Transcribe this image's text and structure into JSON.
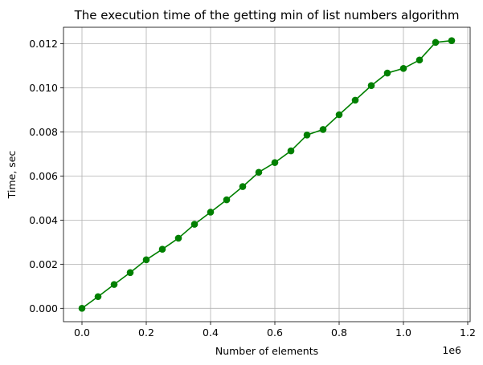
{
  "chart_data": {
    "type": "line",
    "title": "The execution time of the getting min of list numbers algorithm",
    "xlabel": "Number of elements",
    "ylabel": "Time, sec",
    "x_offset_label": "1e6",
    "xlim": [
      -0.0575,
      1.2075
    ],
    "ylim": [
      -0.000607,
      0.012746
    ],
    "x_ticks": [
      0.0,
      0.2,
      0.4,
      0.6,
      0.8,
      1.0,
      1.2
    ],
    "x_tick_labels": [
      "0.0",
      "0.2",
      "0.4",
      "0.6",
      "0.8",
      "1.0",
      "1.2"
    ],
    "y_ticks": [
      0.0,
      0.002,
      0.004,
      0.006,
      0.008,
      0.01,
      0.012
    ],
    "y_tick_labels": [
      "0.000",
      "0.002",
      "0.004",
      "0.006",
      "0.008",
      "0.010",
      "0.012"
    ],
    "grid": true,
    "color": "#008000",
    "series": [
      {
        "x": [
          0,
          0.05,
          0.1,
          0.15,
          0.2,
          0.25,
          0.3,
          0.35,
          0.4,
          0.45,
          0.5,
          0.55,
          0.6,
          0.65,
          0.7,
          0.75,
          0.8,
          0.85,
          0.9,
          0.95,
          1.0,
          1.05,
          1.1,
          1.15
        ],
        "values": [
          0.0,
          0.00053,
          0.00108,
          0.00162,
          0.0022,
          0.00268,
          0.00318,
          0.00381,
          0.00436,
          0.00492,
          0.00552,
          0.00617,
          0.00661,
          0.00714,
          0.00786,
          0.00811,
          0.00878,
          0.00944,
          0.0101,
          0.01067,
          0.01088,
          0.01126,
          0.01206,
          0.01214
        ]
      }
    ]
  }
}
